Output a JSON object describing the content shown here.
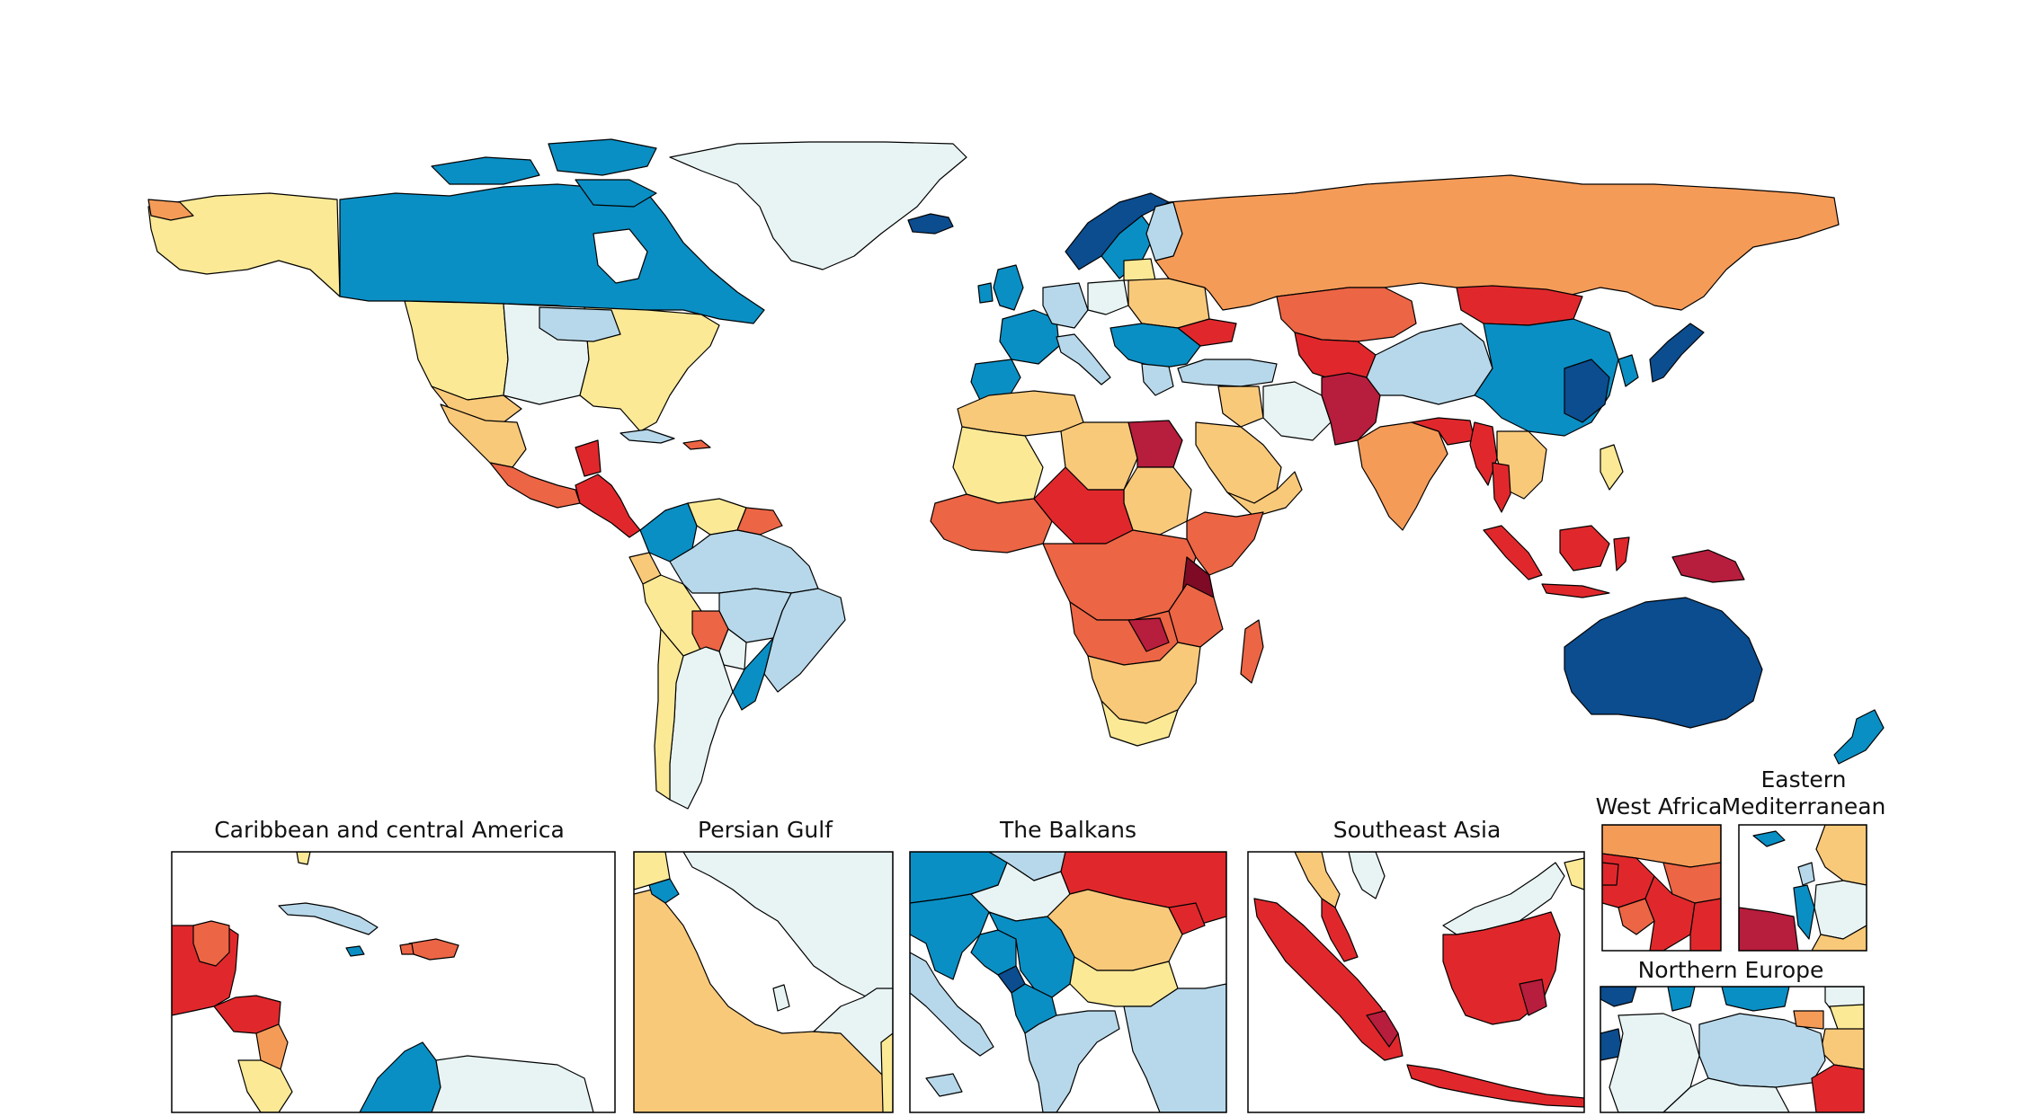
{
  "colors": {
    "c1": "#0b4d8f",
    "c2": "#0a8fc4",
    "c3": "#b7d8ea",
    "c4": "#e8f4f4",
    "c5": "#fbe996",
    "c6": "#f9c97a",
    "c7": "#f59b58",
    "c8": "#ec6545",
    "c9": "#e0282c",
    "c10": "#b71d3c",
    "c11": "#7e0a25",
    "ocean": "#ffffff"
  },
  "insets": [
    {
      "id": "caribbean",
      "title": "Caribbean and central America"
    },
    {
      "id": "persian-gulf",
      "title": "Persian Gulf"
    },
    {
      "id": "balkans",
      "title": "The Balkans"
    },
    {
      "id": "southeast-asia",
      "title": "Southeast Asia"
    },
    {
      "id": "west-africa",
      "title": "West Africa"
    },
    {
      "id": "eastern-med",
      "title_line1": "Eastern",
      "title_line2": "Mediterranean"
    },
    {
      "id": "northern-europe",
      "title": "Northern Europe"
    }
  ]
}
